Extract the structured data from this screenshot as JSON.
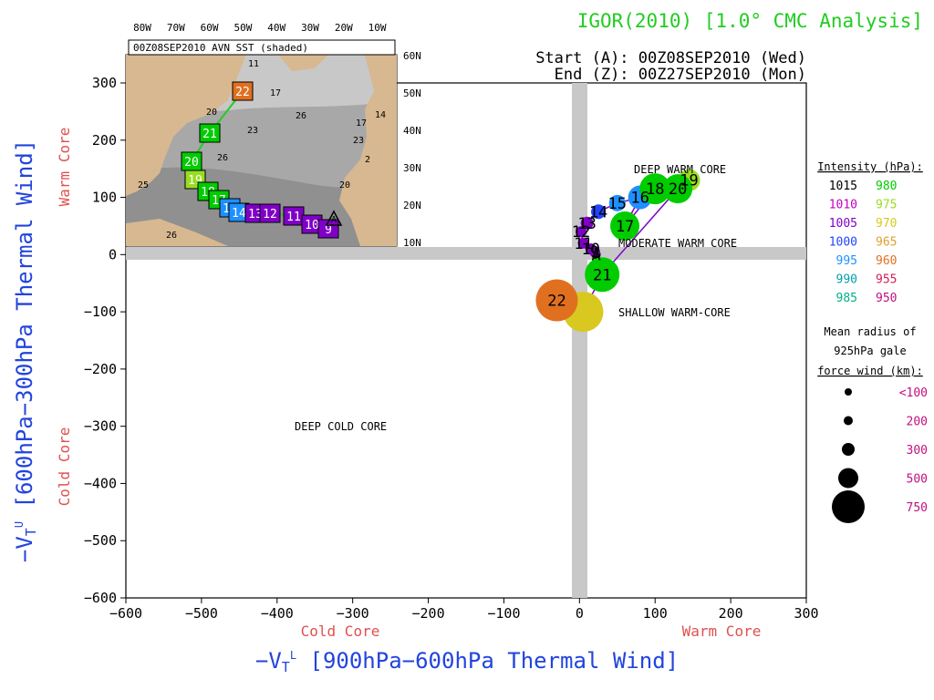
{
  "header": {
    "title": "IGOR(2010) [1.0° CMC Analysis]",
    "start": "Start (A): 00Z08SEP2010 (Wed)",
    "end": "End (Z): 00Z27SEP2010 (Mon)"
  },
  "inset": {
    "title": "00Z08SEP2010 AVN SST (shaded)",
    "lon_labels": [
      "80W",
      "70W",
      "60W",
      "50W",
      "40W",
      "30W",
      "20W",
      "10W"
    ],
    "lat_labels": [
      "60N",
      "50N",
      "40N",
      "30N",
      "20N",
      "10N"
    ],
    "sst_labels": [
      "11",
      "17",
      "20",
      "23",
      "26",
      "14",
      "17",
      "26",
      "23",
      "20",
      "25",
      "26",
      "2"
    ],
    "track_labels": [
      "22",
      "21",
      "20",
      "19",
      "18",
      "17",
      "15",
      "14",
      "13",
      "12",
      "11",
      "10",
      "9",
      "A"
    ]
  },
  "legend": {
    "intensity_title": "Intensity (hPa):",
    "intensity": [
      {
        "left": "1015",
        "left_color": "#000000",
        "right": "980",
        "right_color": "#00cc00"
      },
      {
        "left": "1010",
        "left_color": "#c000c0",
        "right": "975",
        "right_color": "#99dd22"
      },
      {
        "left": "1005",
        "left_color": "#8000c8",
        "right": "970",
        "right_color": "#d8c820"
      },
      {
        "left": "1000",
        "left_color": "#2244ff",
        "right": "965",
        "right_color": "#e0a030"
      },
      {
        "left": "995",
        "left_color": "#1e90ff",
        "right": "960",
        "right_color": "#e07020"
      },
      {
        "left": "990",
        "left_color": "#00a0b0",
        "right": "955",
        "right_color": "#d02050"
      },
      {
        "left": "985",
        "left_color": "#00b088",
        "right": "950",
        "right_color": "#c01080"
      }
    ],
    "radius_title_1": "Mean radius of",
    "radius_title_2": "925hPa gale",
    "radius_title_3": "force wind (km):",
    "radius": [
      "<100",
      "200",
      "300",
      "500",
      "750"
    ]
  },
  "chart_data": {
    "type": "scatter",
    "title": "IGOR(2010) [1.0° CMC Analysis]",
    "xlabel": "-VT L [900hPa-600hPa Thermal Wind]",
    "ylabel": "-VT U [600hPa-300hPa Thermal Wind]",
    "x_side_labels": [
      "Cold Core",
      "Warm Core"
    ],
    "y_side_labels": [
      "Warm Core",
      "Cold Core"
    ],
    "xlim": [
      -600,
      300
    ],
    "ylim": [
      -600,
      300
    ],
    "xticks": [
      "-600",
      "-500",
      "-400",
      "-300",
      "-200",
      "-100",
      "0",
      "100",
      "200",
      "300"
    ],
    "yticks": [
      "300",
      "200",
      "100",
      "0",
      "-100",
      "-200",
      "-300",
      "-400",
      "-500",
      "-600"
    ],
    "regions": [
      "DEEP WARM CORE",
      "MODERATE WARM CORE",
      "SHALLOW WARM-CORE",
      "DEEP COLD CORE"
    ],
    "grid": false,
    "points": [
      {
        "x": 22,
        "y": 0,
        "color": "#000000",
        "r": 5,
        "label": "A"
      },
      {
        "x": 20,
        "y": 5,
        "color": "#8000c8",
        "r": 6,
        "label": "9"
      },
      {
        "x": 15,
        "y": 10,
        "color": "#8000c8",
        "r": 6,
        "label": "10"
      },
      {
        "x": 5,
        "y": 20,
        "color": "#8000c8",
        "r": 6,
        "label": "11"
      },
      {
        "x": 2,
        "y": 40,
        "color": "#8000c8",
        "r": 6,
        "label": "12"
      },
      {
        "x": 10,
        "y": 55,
        "color": "#8000c8",
        "r": 7,
        "label": "13"
      },
      {
        "x": 25,
        "y": 75,
        "color": "#2244ff",
        "r": 8,
        "label": "14"
      },
      {
        "x": 50,
        "y": 90,
        "color": "#1e90ff",
        "r": 9,
        "label": "15"
      },
      {
        "x": 80,
        "y": 100,
        "color": "#1e90ff",
        "r": 13,
        "label": "16"
      },
      {
        "x": 60,
        "y": 50,
        "color": "#00cc00",
        "r": 16,
        "label": "17"
      },
      {
        "x": 100,
        "y": 115,
        "color": "#00cc00",
        "r": 17,
        "label": "18"
      },
      {
        "x": 145,
        "y": 130,
        "color": "#99dd22",
        "r": 12,
        "label": "19"
      },
      {
        "x": 130,
        "y": 115,
        "color": "#00cc00",
        "r": 16,
        "label": "20"
      },
      {
        "x": 30,
        "y": -35,
        "color": "#00cc00",
        "r": 19,
        "label": "21"
      },
      {
        "x": 5,
        "y": -100,
        "color": "#d8c820",
        "r": 22,
        "label": ""
      },
      {
        "x": -30,
        "y": -80,
        "color": "#e07020",
        "r": 23,
        "label": "22"
      }
    ]
  }
}
